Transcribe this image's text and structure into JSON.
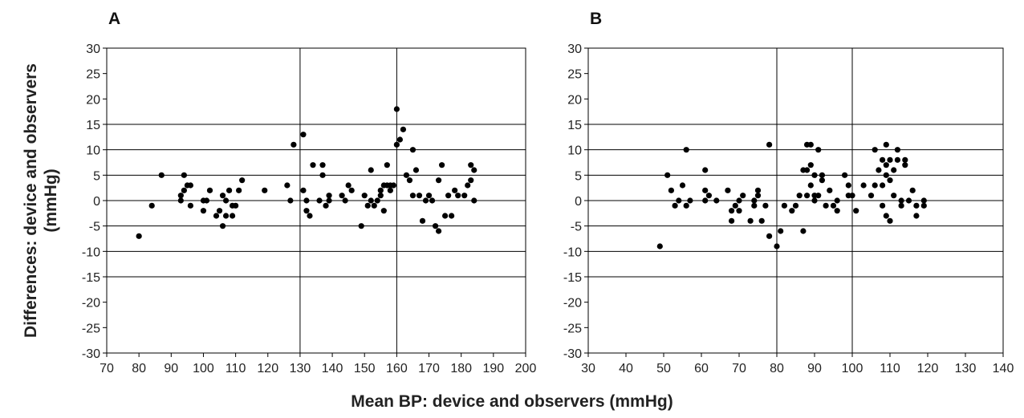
{
  "figure": {
    "ylabel_line1": "Differences: device and observers",
    "ylabel_line2": "(mmHg)",
    "xlabel": "Mean BP: device and observers (mmHg)"
  },
  "chart_data": [
    {
      "type": "scatter",
      "panel_label": "A",
      "xlim": [
        70,
        200
      ],
      "ylim": [
        -30,
        30
      ],
      "x_ticks": [
        70,
        80,
        90,
        100,
        110,
        120,
        130,
        140,
        150,
        160,
        170,
        180,
        190,
        200
      ],
      "y_ticks": [
        30,
        25,
        20,
        15,
        10,
        5,
        0,
        -5,
        -10,
        -15,
        -20,
        -25,
        -30
      ],
      "horizontal_gridlines": [
        15,
        10,
        5,
        0,
        -5,
        -10,
        -15
      ],
      "vertical_lines": [
        130,
        160
      ],
      "points": [
        [
          80,
          -7
        ],
        [
          84,
          -1
        ],
        [
          87,
          5
        ],
        [
          93,
          0
        ],
        [
          93,
          1
        ],
        [
          94,
          2
        ],
        [
          94,
          5
        ],
        [
          95,
          3
        ],
        [
          96,
          3
        ],
        [
          96,
          -1
        ],
        [
          100,
          0
        ],
        [
          100,
          -2
        ],
        [
          101,
          0
        ],
        [
          102,
          2
        ],
        [
          104,
          -3
        ],
        [
          105,
          -2
        ],
        [
          106,
          1
        ],
        [
          106,
          -5
        ],
        [
          107,
          0
        ],
        [
          107,
          -3
        ],
        [
          108,
          2
        ],
        [
          109,
          -1
        ],
        [
          109,
          -3
        ],
        [
          110,
          -1
        ],
        [
          111,
          2
        ],
        [
          112,
          4
        ],
        [
          119,
          2
        ],
        [
          126,
          3
        ],
        [
          127,
          0
        ],
        [
          128,
          11
        ],
        [
          131,
          13
        ],
        [
          131,
          2
        ],
        [
          132,
          0
        ],
        [
          132,
          -2
        ],
        [
          133,
          -3
        ],
        [
          134,
          7
        ],
        [
          136,
          0
        ],
        [
          137,
          7
        ],
        [
          137,
          5
        ],
        [
          138,
          -1
        ],
        [
          139,
          0
        ],
        [
          139,
          1
        ],
        [
          143,
          1
        ],
        [
          144,
          0
        ],
        [
          145,
          3
        ],
        [
          146,
          2
        ],
        [
          149,
          -5
        ],
        [
          151,
          -1
        ],
        [
          152,
          6
        ],
        [
          152,
          0
        ],
        [
          153,
          -1
        ],
        [
          154,
          0
        ],
        [
          155,
          1
        ],
        [
          155,
          2
        ],
        [
          156,
          3
        ],
        [
          156,
          -2
        ],
        [
          157,
          3
        ],
        [
          157,
          7
        ],
        [
          158,
          2
        ],
        [
          158,
          3
        ],
        [
          160,
          18
        ],
        [
          160,
          11
        ],
        [
          161,
          12
        ],
        [
          162,
          14
        ],
        [
          163,
          5
        ],
        [
          164,
          4
        ],
        [
          165,
          10
        ],
        [
          165,
          1
        ],
        [
          166,
          6
        ],
        [
          167,
          1
        ],
        [
          168,
          -4
        ],
        [
          169,
          0
        ],
        [
          171,
          0
        ],
        [
          172,
          -5
        ],
        [
          173,
          -6
        ],
        [
          173,
          4
        ],
        [
          174,
          7
        ],
        [
          175,
          -3
        ],
        [
          176,
          1
        ],
        [
          177,
          -3
        ],
        [
          178,
          2
        ],
        [
          179,
          1
        ],
        [
          181,
          1
        ],
        [
          182,
          3
        ],
        [
          183,
          7
        ],
        [
          183,
          4
        ],
        [
          184,
          6
        ],
        [
          184,
          0
        ],
        [
          150,
          1
        ],
        [
          159,
          3
        ],
        [
          170,
          1
        ]
      ]
    },
    {
      "type": "scatter",
      "panel_label": "B",
      "xlim": [
        30,
        140
      ],
      "ylim": [
        -30,
        30
      ],
      "x_ticks": [
        30,
        40,
        50,
        60,
        70,
        80,
        90,
        100,
        110,
        120,
        130,
        140
      ],
      "y_ticks": [
        30,
        25,
        20,
        15,
        10,
        5,
        0,
        -5,
        -10,
        -15,
        -20,
        -25,
        -30
      ],
      "horizontal_gridlines": [
        15,
        10,
        5,
        0,
        -5,
        -10,
        -15
      ],
      "vertical_lines": [
        80,
        100
      ],
      "points": [
        [
          49,
          -9
        ],
        [
          51,
          5
        ],
        [
          52,
          2
        ],
        [
          53,
          -1
        ],
        [
          54,
          0
        ],
        [
          55,
          3
        ],
        [
          56,
          10
        ],
        [
          56,
          -1
        ],
        [
          57,
          0
        ],
        [
          61,
          6
        ],
        [
          61,
          2
        ],
        [
          61,
          0
        ],
        [
          62,
          1
        ],
        [
          64,
          0
        ],
        [
          67,
          2
        ],
        [
          68,
          -4
        ],
        [
          68,
          -2
        ],
        [
          69,
          -1
        ],
        [
          70,
          0
        ],
        [
          70,
          -2
        ],
        [
          71,
          1
        ],
        [
          73,
          -4
        ],
        [
          74,
          -1
        ],
        [
          74,
          0
        ],
        [
          75,
          2
        ],
        [
          75,
          1
        ],
        [
          76,
          -4
        ],
        [
          77,
          -1
        ],
        [
          78,
          -7
        ],
        [
          78,
          11
        ],
        [
          80,
          -9
        ],
        [
          81,
          -6
        ],
        [
          82,
          -1
        ],
        [
          84,
          -2
        ],
        [
          85,
          -1
        ],
        [
          86,
          1
        ],
        [
          87,
          6
        ],
        [
          87,
          -6
        ],
        [
          88,
          11
        ],
        [
          88,
          6
        ],
        [
          88,
          1
        ],
        [
          89,
          11
        ],
        [
          89,
          7
        ],
        [
          89,
          3
        ],
        [
          90,
          5
        ],
        [
          90,
          1
        ],
        [
          91,
          10
        ],
        [
          91,
          1
        ],
        [
          92,
          5
        ],
        [
          92,
          4
        ],
        [
          93,
          -1
        ],
        [
          94,
          2
        ],
        [
          95,
          -1
        ],
        [
          96,
          -2
        ],
        [
          96,
          0
        ],
        [
          98,
          5
        ],
        [
          99,
          3
        ],
        [
          100,
          1
        ],
        [
          101,
          -2
        ],
        [
          103,
          3
        ],
        [
          105,
          1
        ],
        [
          106,
          10
        ],
        [
          107,
          6
        ],
        [
          108,
          8
        ],
        [
          108,
          3
        ],
        [
          108,
          -1
        ],
        [
          109,
          7
        ],
        [
          109,
          11
        ],
        [
          109,
          5
        ],
        [
          110,
          8
        ],
        [
          110,
          4
        ],
        [
          110,
          -4
        ],
        [
          111,
          1
        ],
        [
          111,
          6
        ],
        [
          112,
          8
        ],
        [
          112,
          10
        ],
        [
          113,
          0
        ],
        [
          113,
          -1
        ],
        [
          114,
          8
        ],
        [
          114,
          7
        ],
        [
          115,
          0
        ],
        [
          116,
          2
        ],
        [
          117,
          -3
        ],
        [
          117,
          -1
        ],
        [
          119,
          -1
        ],
        [
          119,
          0
        ],
        [
          106,
          3
        ],
        [
          109,
          -3
        ],
        [
          90,
          0
        ],
        [
          99,
          1
        ]
      ]
    }
  ]
}
